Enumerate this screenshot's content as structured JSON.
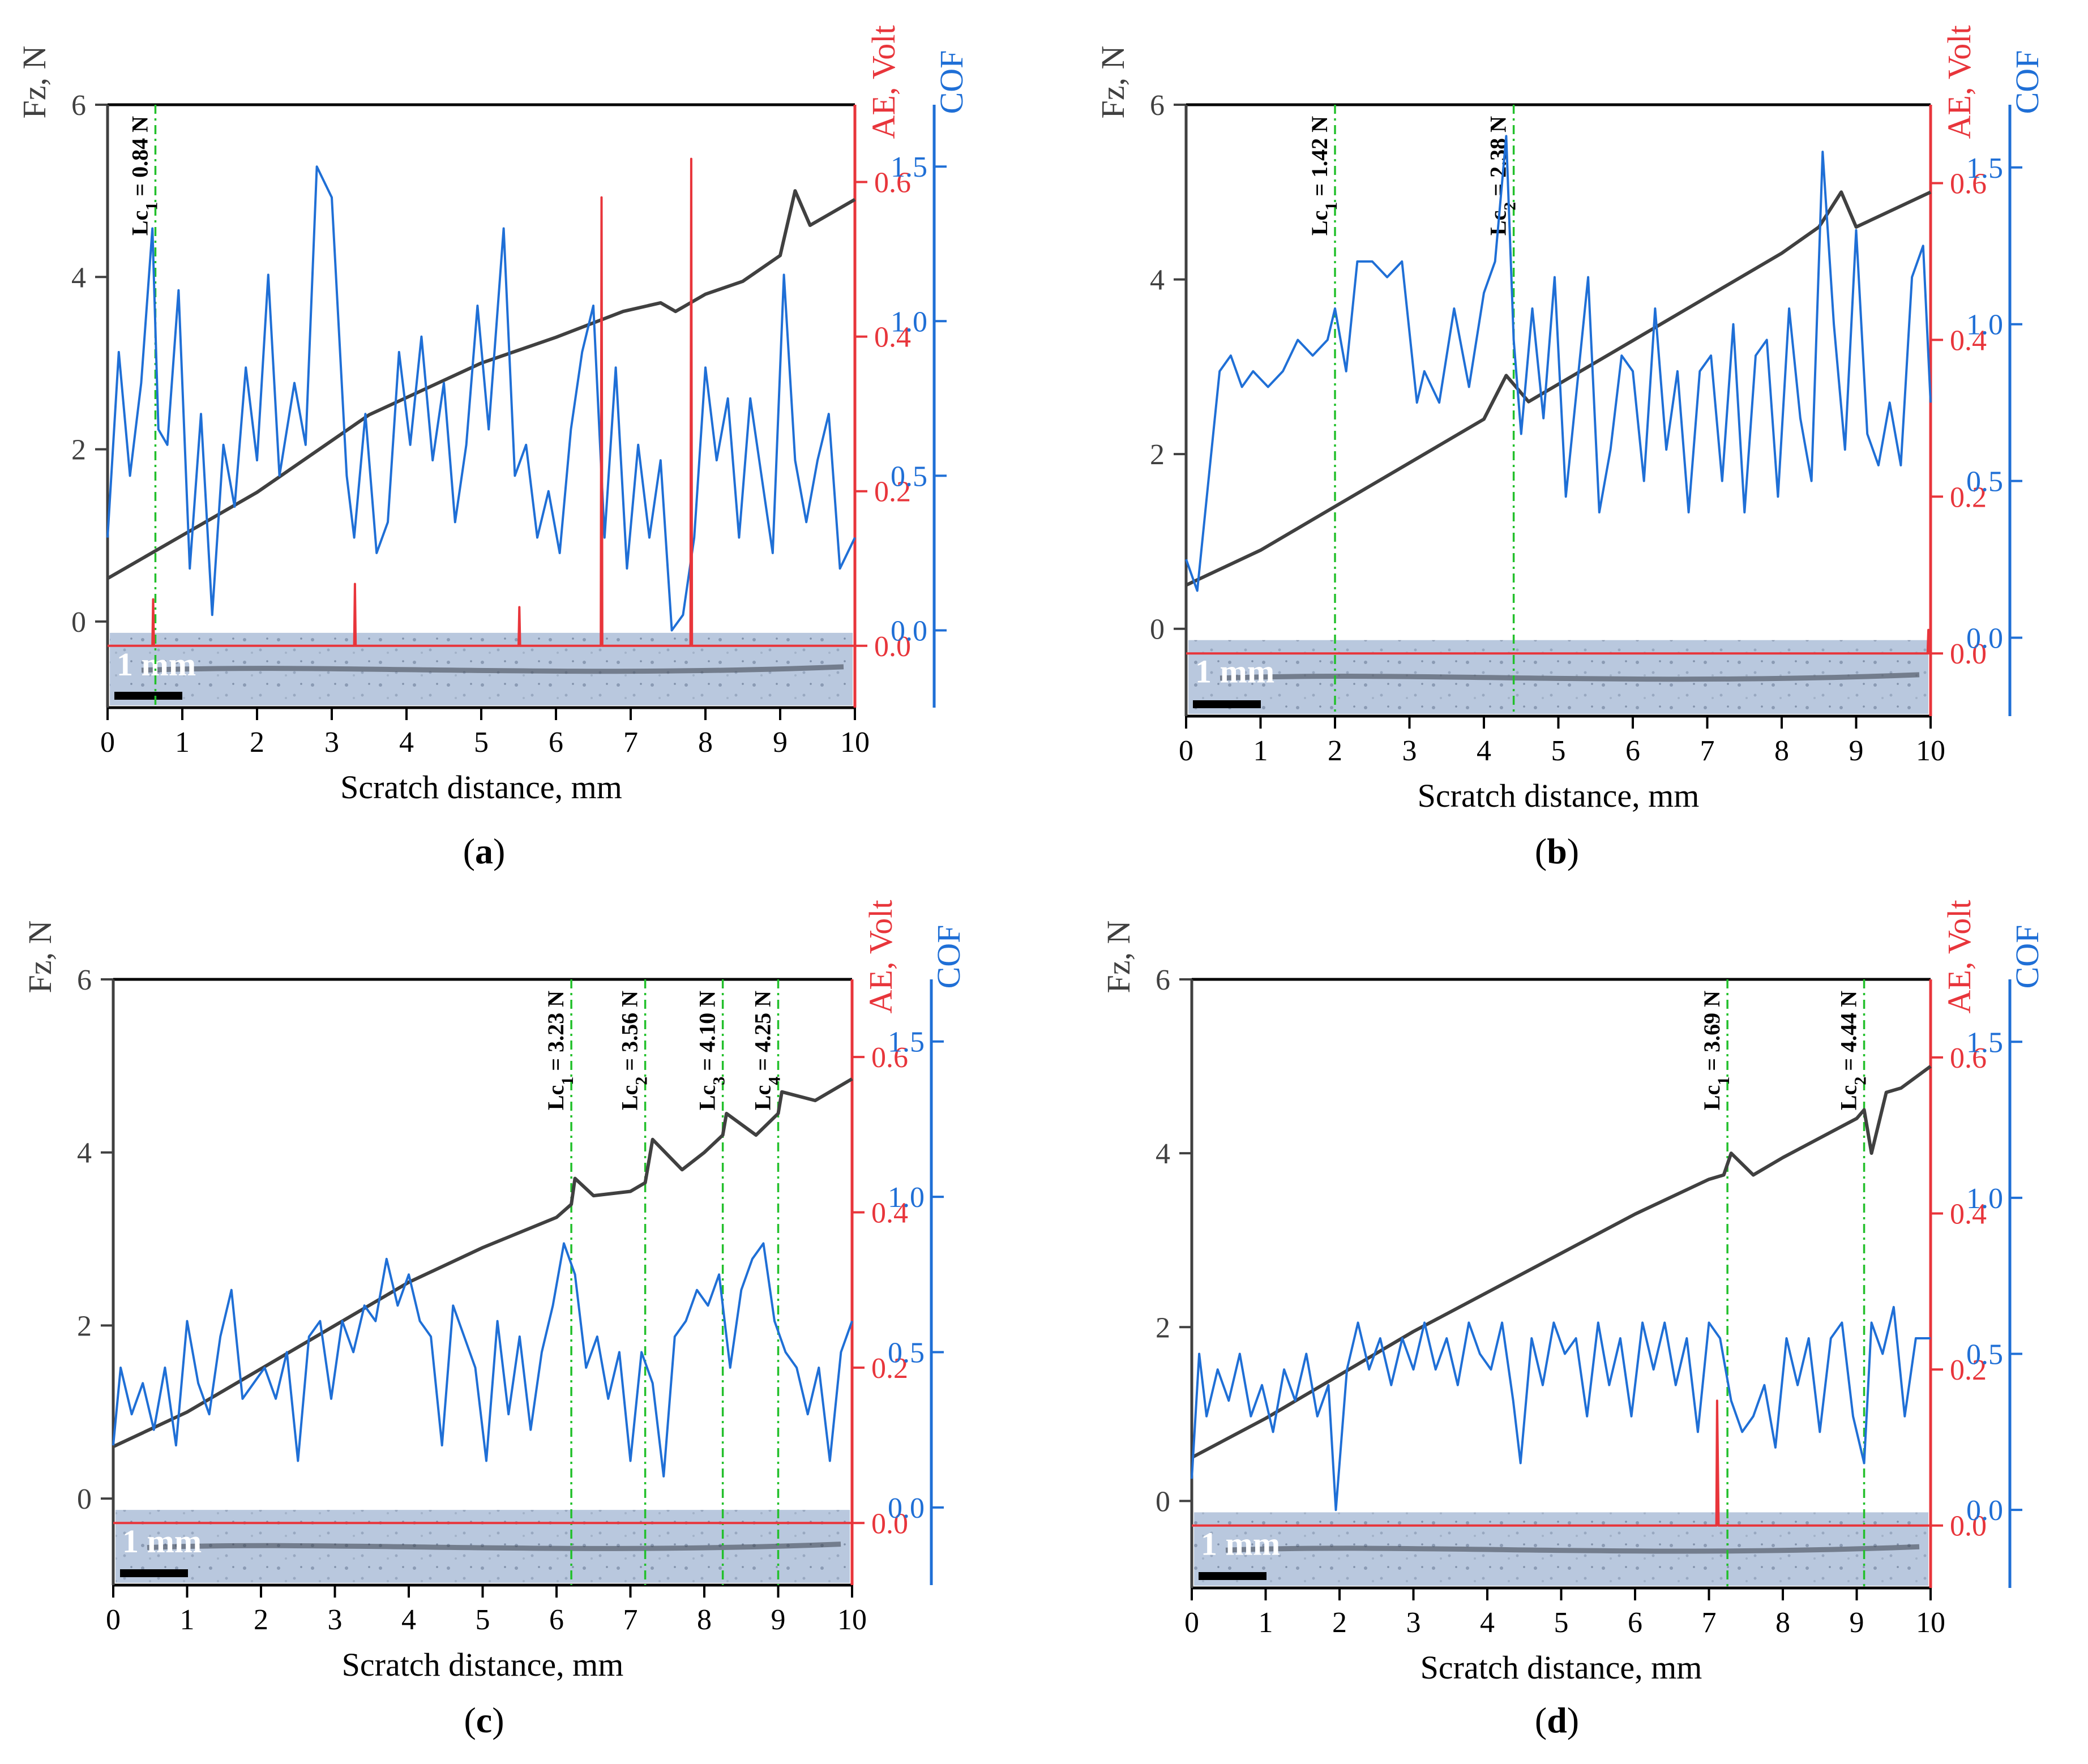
{
  "figure": {
    "panels": [
      "a",
      "b",
      "c",
      "d"
    ],
    "colors": {
      "fz": "#404040",
      "ae": "#e8353b",
      "cof": "#1f6fd6",
      "lc": "#22c02b",
      "frame": "#000000",
      "micrograph": "#b7c6dc"
    }
  },
  "chart_data": [
    {
      "id": "a",
      "type": "line",
      "panel_label": "(a)",
      "xlabel": "Scratch distance, mm",
      "xlim": [
        0,
        10
      ],
      "xticks": [
        "0",
        "1",
        "2",
        "3",
        "4",
        "5",
        "6",
        "7",
        "8",
        "9",
        "10"
      ],
      "y_left": {
        "label": "Fz, N",
        "lim": [
          -1,
          6
        ],
        "ticks": [
          "0",
          "2",
          "4",
          "6"
        ]
      },
      "y_ae": {
        "label": "AE, Volt",
        "lim": [
          -0.08,
          0.7
        ],
        "ticks": [
          "0.0",
          "0.2",
          "0.4",
          "0.6"
        ]
      },
      "y_cof": {
        "label": "COF",
        "lim": [
          -0.25,
          1.7
        ],
        "ticks": [
          "0.0",
          "0.5",
          "1.0",
          "1.5"
        ]
      },
      "scale_bar": "1 mm",
      "lc": [
        {
          "x": 0.64,
          "label": "Lc",
          "sub": "1",
          "value": " = 0.84 N"
        }
      ],
      "series": [
        {
          "name": "Fz",
          "axis": "fz",
          "x": [
            0,
            0.6,
            1,
            2,
            3,
            3.5,
            4,
            5,
            6,
            6.9,
            7.4,
            7.6,
            8,
            8.5,
            9,
            9.2,
            9.4,
            10
          ],
          "y": [
            0.5,
            0.8,
            1.0,
            1.5,
            2.1,
            2.4,
            2.6,
            3.0,
            3.3,
            3.6,
            3.7,
            3.6,
            3.8,
            3.95,
            4.25,
            5.0,
            4.6,
            4.9
          ]
        },
        {
          "name": "COF",
          "axis": "cof",
          "x": [
            0,
            0.15,
            0.3,
            0.45,
            0.6,
            0.68,
            0.8,
            0.95,
            1.1,
            1.25,
            1.4,
            1.55,
            1.7,
            1.85,
            2.0,
            2.15,
            2.3,
            2.5,
            2.65,
            2.8,
            3.0,
            3.2,
            3.3,
            3.45,
            3.6,
            3.75,
            3.9,
            4.05,
            4.2,
            4.35,
            4.5,
            4.65,
            4.8,
            4.95,
            5.1,
            5.3,
            5.45,
            5.6,
            5.75,
            5.9,
            6.05,
            6.2,
            6.35,
            6.5,
            6.65,
            6.8,
            6.95,
            7.1,
            7.25,
            7.4,
            7.55,
            7.7,
            7.85,
            8.0,
            8.15,
            8.3,
            8.45,
            8.6,
            8.75,
            8.9,
            9.05,
            9.2,
            9.35,
            9.5,
            9.65,
            9.8,
            10
          ],
          "y": [
            0.3,
            0.9,
            0.5,
            0.8,
            1.3,
            0.65,
            0.6,
            1.1,
            0.2,
            0.7,
            0.05,
            0.6,
            0.4,
            0.85,
            0.55,
            1.15,
            0.5,
            0.8,
            0.6,
            1.5,
            1.4,
            0.5,
            0.3,
            0.7,
            0.25,
            0.35,
            0.9,
            0.6,
            0.95,
            0.55,
            0.8,
            0.35,
            0.6,
            1.05,
            0.65,
            1.3,
            0.5,
            0.6,
            0.3,
            0.45,
            0.25,
            0.65,
            0.9,
            1.05,
            0.3,
            0.85,
            0.2,
            0.6,
            0.3,
            0.55,
            0.0,
            0.05,
            0.3,
            0.85,
            0.55,
            0.75,
            0.3,
            0.75,
            0.5,
            0.25,
            1.15,
            0.55,
            0.35,
            0.55,
            0.7,
            0.2,
            0.3
          ]
        },
        {
          "name": "AE",
          "axis": "ae",
          "x": [
            0,
            0.6,
            0.61,
            0.62,
            3.3,
            3.31,
            3.32,
            5.5,
            5.51,
            5.52,
            6.6,
            6.61,
            6.62,
            7.8,
            7.81,
            7.82,
            10
          ],
          "y": [
            0,
            0,
            0.06,
            0,
            0,
            0.08,
            0,
            0,
            0.05,
            0,
            0,
            0.58,
            0,
            0,
            0.63,
            0,
            0
          ]
        }
      ]
    },
    {
      "id": "b",
      "type": "line",
      "panel_label": "(b)",
      "xlabel": "Scratch distance, mm",
      "xlim": [
        0,
        10
      ],
      "xticks": [
        "0",
        "1",
        "2",
        "3",
        "4",
        "5",
        "6",
        "7",
        "8",
        "9",
        "10"
      ],
      "y_left": {
        "label": "Fz, N",
        "lim": [
          -1,
          6
        ],
        "ticks": [
          "0",
          "2",
          "4",
          "6"
        ]
      },
      "y_ae": {
        "label": "AE, Volt",
        "lim": [
          -0.08,
          0.7
        ],
        "ticks": [
          "0.0",
          "0.2",
          "0.4",
          "0.6"
        ]
      },
      "y_cof": {
        "label": "COF",
        "lim": [
          -0.25,
          1.7
        ],
        "ticks": [
          "0.0",
          "0.5",
          "1.0",
          "1.5"
        ]
      },
      "scale_bar": "1 mm",
      "lc": [
        {
          "x": 2.0,
          "label": "Lc",
          "sub": "1",
          "value": " = 1.42 N"
        },
        {
          "x": 4.4,
          "label": "Lc",
          "sub": "2",
          "value": " = 2.38 N"
        }
      ],
      "series": [
        {
          "name": "Fz",
          "axis": "fz",
          "x": [
            0,
            1,
            2,
            3,
            4,
            4.3,
            4.6,
            5,
            6,
            7,
            8,
            8.5,
            8.8,
            9,
            10
          ],
          "y": [
            0.5,
            0.9,
            1.4,
            1.9,
            2.4,
            2.9,
            2.6,
            2.8,
            3.3,
            3.8,
            4.3,
            4.6,
            5.0,
            4.6,
            5.0
          ]
        },
        {
          "name": "COF",
          "axis": "cof",
          "x": [
            0,
            0.15,
            0.3,
            0.45,
            0.6,
            0.75,
            0.9,
            1.1,
            1.3,
            1.5,
            1.7,
            1.9,
            2.0,
            2.15,
            2.3,
            2.5,
            2.7,
            2.9,
            3.1,
            3.2,
            3.4,
            3.6,
            3.8,
            4.0,
            4.15,
            4.3,
            4.4,
            4.5,
            4.65,
            4.8,
            4.95,
            5.1,
            5.25,
            5.4,
            5.55,
            5.7,
            5.85,
            6.0,
            6.15,
            6.3,
            6.45,
            6.6,
            6.75,
            6.9,
            7.05,
            7.2,
            7.35,
            7.5,
            7.65,
            7.8,
            7.95,
            8.1,
            8.25,
            8.4,
            8.55,
            8.7,
            8.85,
            9.0,
            9.15,
            9.3,
            9.45,
            9.6,
            9.75,
            9.9,
            10
          ],
          "y": [
            0.25,
            0.15,
            0.5,
            0.85,
            0.9,
            0.8,
            0.85,
            0.8,
            0.85,
            0.95,
            0.9,
            0.95,
            1.05,
            0.85,
            1.2,
            1.2,
            1.15,
            1.2,
            0.75,
            0.85,
            0.75,
            1.05,
            0.8,
            1.1,
            1.2,
            1.6,
            0.95,
            0.65,
            1.05,
            0.7,
            1.15,
            0.45,
            0.8,
            1.15,
            0.4,
            0.6,
            0.9,
            0.85,
            0.5,
            1.05,
            0.6,
            0.85,
            0.4,
            0.85,
            0.9,
            0.5,
            1.0,
            0.4,
            0.9,
            0.95,
            0.45,
            1.05,
            0.7,
            0.5,
            1.55,
            1.0,
            0.6,
            1.3,
            0.65,
            0.55,
            0.75,
            0.55,
            1.15,
            1.25,
            0.75
          ]
        },
        {
          "name": "AE",
          "axis": "ae",
          "x": [
            0,
            9.96,
            9.97,
            9.98,
            10
          ],
          "y": [
            0,
            0,
            0.03,
            0,
            0
          ]
        }
      ]
    },
    {
      "id": "c",
      "type": "line",
      "panel_label": "(c)",
      "xlabel": "Scratch distance, mm",
      "xlim": [
        0,
        10
      ],
      "xticks": [
        "0",
        "1",
        "2",
        "3",
        "4",
        "5",
        "6",
        "7",
        "8",
        "9",
        "10"
      ],
      "y_left": {
        "label": "Fz, N",
        "lim": [
          -1,
          6
        ],
        "ticks": [
          "0",
          "2",
          "4",
          "6"
        ]
      },
      "y_ae": {
        "label": "AE, Volt",
        "lim": [
          -0.08,
          0.7
        ],
        "ticks": [
          "0.0",
          "0.2",
          "0.4",
          "0.6"
        ]
      },
      "y_cof": {
        "label": "COF",
        "lim": [
          -0.25,
          1.7
        ],
        "ticks": [
          "0.0",
          "0.5",
          "1.0",
          "1.5"
        ]
      },
      "scale_bar": "1 mm",
      "lc": [
        {
          "x": 6.2,
          "label": "Lc",
          "sub": "1",
          "value": " = 3.23 N"
        },
        {
          "x": 7.2,
          "label": "Lc",
          "sub": "2",
          "value": " = 3.56 N"
        },
        {
          "x": 8.25,
          "label": "Lc",
          "sub": "3",
          "value": " = 4.10 N"
        },
        {
          "x": 9.0,
          "label": "Lc",
          "sub": "4",
          "value": " = 4.25 N"
        }
      ],
      "series": [
        {
          "name": "Fz",
          "axis": "fz",
          "x": [
            0,
            1,
            2,
            3,
            4,
            5,
            6,
            6.2,
            6.25,
            6.5,
            7,
            7.2,
            7.3,
            7.7,
            8,
            8.25,
            8.3,
            8.7,
            9,
            9.05,
            9.5,
            10
          ],
          "y": [
            0.6,
            1.0,
            1.5,
            2.0,
            2.5,
            2.9,
            3.25,
            3.4,
            3.7,
            3.5,
            3.55,
            3.65,
            4.15,
            3.8,
            4.0,
            4.2,
            4.45,
            4.2,
            4.45,
            4.7,
            4.6,
            4.85
          ]
        },
        {
          "name": "COF",
          "axis": "cof",
          "x": [
            0,
            0.1,
            0.25,
            0.4,
            0.55,
            0.7,
            0.85,
            1.0,
            1.15,
            1.3,
            1.45,
            1.6,
            1.75,
            1.9,
            2.05,
            2.2,
            2.35,
            2.5,
            2.65,
            2.8,
            2.95,
            3.1,
            3.25,
            3.4,
            3.55,
            3.7,
            3.85,
            4.0,
            4.15,
            4.3,
            4.45,
            4.6,
            4.75,
            4.9,
            5.05,
            5.2,
            5.35,
            5.5,
            5.65,
            5.8,
            5.95,
            6.1,
            6.25,
            6.4,
            6.55,
            6.7,
            6.85,
            7.0,
            7.15,
            7.3,
            7.45,
            7.6,
            7.75,
            7.9,
            8.05,
            8.2,
            8.35,
            8.5,
            8.65,
            8.8,
            8.95,
            9.1,
            9.25,
            9.4,
            9.55,
            9.7,
            9.85,
            10
          ],
          "y": [
            0.2,
            0.45,
            0.3,
            0.4,
            0.25,
            0.45,
            0.2,
            0.6,
            0.4,
            0.3,
            0.55,
            0.7,
            0.35,
            0.4,
            0.45,
            0.35,
            0.5,
            0.15,
            0.55,
            0.6,
            0.35,
            0.6,
            0.5,
            0.65,
            0.6,
            0.8,
            0.65,
            0.75,
            0.6,
            0.55,
            0.2,
            0.65,
            0.55,
            0.45,
            0.15,
            0.6,
            0.3,
            0.55,
            0.25,
            0.5,
            0.65,
            0.85,
            0.75,
            0.45,
            0.55,
            0.35,
            0.5,
            0.15,
            0.5,
            0.4,
            0.1,
            0.55,
            0.6,
            0.7,
            0.65,
            0.75,
            0.45,
            0.7,
            0.8,
            0.85,
            0.6,
            0.5,
            0.45,
            0.3,
            0.45,
            0.15,
            0.5,
            0.6
          ]
        },
        {
          "name": "AE",
          "axis": "ae",
          "x": [
            0,
            10
          ],
          "y": [
            0,
            0
          ]
        }
      ]
    },
    {
      "id": "d",
      "type": "line",
      "panel_label": "(d)",
      "xlabel": "Scratch distance, mm",
      "xlim": [
        0,
        10
      ],
      "xticks": [
        "0",
        "1",
        "2",
        "3",
        "4",
        "5",
        "6",
        "7",
        "8",
        "9",
        "10"
      ],
      "y_left": {
        "label": "Fz, N",
        "lim": [
          -1,
          6
        ],
        "ticks": [
          "0",
          "2",
          "4",
          "6"
        ]
      },
      "y_ae": {
        "label": "AE, Volt",
        "lim": [
          -0.08,
          0.7
        ],
        "ticks": [
          "0.0",
          "0.2",
          "0.4",
          "0.6"
        ]
      },
      "y_cof": {
        "label": "COF",
        "lim": [
          -0.25,
          1.7
        ],
        "ticks": [
          "0.0",
          "0.5",
          "1.0",
          "1.5"
        ]
      },
      "scale_bar": "1 mm",
      "lc": [
        {
          "x": 7.25,
          "label": "Lc",
          "sub": "1",
          "value": " = 3.69 N"
        },
        {
          "x": 9.1,
          "label": "Lc",
          "sub": "2",
          "value": " = 4.44 N"
        }
      ],
      "series": [
        {
          "name": "Fz",
          "axis": "fz",
          "x": [
            0,
            1,
            2,
            3,
            4,
            5,
            6,
            7,
            7.2,
            7.3,
            7.6,
            8,
            9,
            9.1,
            9.2,
            9.4,
            9.6,
            10
          ],
          "y": [
            0.5,
            0.95,
            1.45,
            1.95,
            2.4,
            2.85,
            3.3,
            3.7,
            3.75,
            4.0,
            3.75,
            3.95,
            4.4,
            4.5,
            4.0,
            4.7,
            4.75,
            5.0
          ]
        },
        {
          "name": "COF",
          "axis": "cof",
          "x": [
            0,
            0.1,
            0.2,
            0.35,
            0.5,
            0.65,
            0.8,
            0.95,
            1.1,
            1.25,
            1.4,
            1.55,
            1.7,
            1.85,
            1.95,
            2.1,
            2.25,
            2.4,
            2.55,
            2.7,
            2.85,
            3.0,
            3.15,
            3.3,
            3.45,
            3.6,
            3.75,
            3.9,
            4.05,
            4.2,
            4.35,
            4.45,
            4.6,
            4.75,
            4.9,
            5.05,
            5.2,
            5.35,
            5.5,
            5.65,
            5.8,
            5.95,
            6.1,
            6.25,
            6.4,
            6.55,
            6.7,
            6.85,
            7.0,
            7.15,
            7.3,
            7.45,
            7.6,
            7.75,
            7.9,
            8.05,
            8.2,
            8.35,
            8.5,
            8.65,
            8.8,
            8.95,
            9.1,
            9.2,
            9.35,
            9.5,
            9.65,
            9.8,
            10
          ],
          "y": [
            0.1,
            0.5,
            0.3,
            0.45,
            0.35,
            0.5,
            0.3,
            0.4,
            0.25,
            0.45,
            0.35,
            0.5,
            0.3,
            0.4,
            0.0,
            0.45,
            0.6,
            0.45,
            0.55,
            0.4,
            0.55,
            0.45,
            0.6,
            0.45,
            0.55,
            0.4,
            0.6,
            0.5,
            0.45,
            0.6,
            0.35,
            0.15,
            0.55,
            0.4,
            0.6,
            0.5,
            0.55,
            0.3,
            0.6,
            0.4,
            0.55,
            0.3,
            0.6,
            0.45,
            0.6,
            0.4,
            0.55,
            0.25,
            0.6,
            0.55,
            0.35,
            0.25,
            0.3,
            0.4,
            0.2,
            0.55,
            0.4,
            0.55,
            0.25,
            0.55,
            0.6,
            0.3,
            0.15,
            0.6,
            0.5,
            0.65,
            0.3,
            0.55,
            0.55
          ]
        },
        {
          "name": "AE",
          "axis": "ae",
          "x": [
            0,
            7.1,
            7.11,
            7.13,
            10
          ],
          "y": [
            0,
            0,
            0.16,
            0,
            0
          ]
        }
      ]
    }
  ]
}
